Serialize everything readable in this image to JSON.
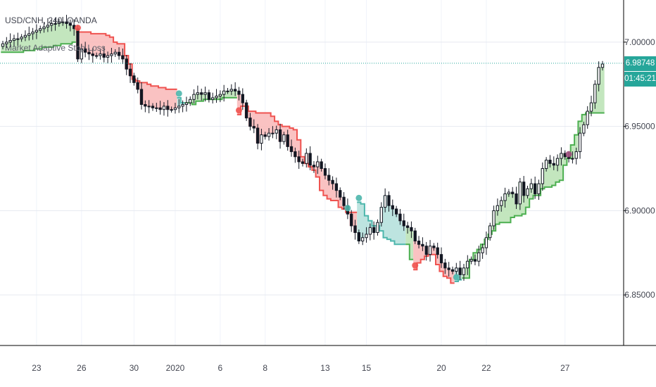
{
  "header": {
    "title": "USD/CNH, 240, OANDA",
    "indicator": "Market Adaptive Stop Loss"
  },
  "price_axis": {
    "last_price": "6.98748",
    "countdown": "01:45:21"
  },
  "colors": {
    "up_fill": "#b9e2b3",
    "up_line": "#4caf50",
    "down_fill": "#f9b7b7",
    "down_line": "#ef5350",
    "teal_fill": "#b2dfdb",
    "teal_line": "#4db6ac",
    "current_price": "#26a69a",
    "marker_red": "#ef5350",
    "marker_teal": "#4db6ac",
    "marker_purple": "#9c4d7b"
  },
  "chart_data": {
    "type": "candlestick",
    "symbol": "USD/CNH",
    "timeframe": "240",
    "source": "OANDA",
    "ylim": [
      6.82,
      7.025
    ],
    "y_ticks": [
      "7.00000",
      "6.95000",
      "6.90000",
      "6.85000"
    ],
    "y_tick_values": [
      7.0,
      6.95,
      6.9,
      6.85
    ],
    "x_ticks": [
      "23",
      "26",
      "30",
      "2020",
      "6",
      "8",
      "13",
      "15",
      "20",
      "22",
      "27"
    ],
    "current_price": 6.98748,
    "close": [
      6.999,
      7.0,
      7.001,
      7.002,
      7.002,
      7.003,
      7.004,
      7.005,
      7.006,
      7.007,
      7.008,
      7.009,
      7.01,
      7.011,
      7.011,
      7.012,
      7.012,
      7.011,
      7.01,
      7.008,
      6.99,
      6.996,
      6.994,
      6.993,
      6.992,
      6.992,
      6.993,
      6.991,
      6.992,
      6.993,
      6.994,
      6.992,
      6.99,
      6.984,
      6.98,
      6.976,
      6.972,
      6.963,
      6.962,
      6.962,
      6.961,
      6.961,
      6.96,
      6.962,
      6.96,
      6.96,
      6.961,
      6.962,
      6.963,
      6.964,
      6.966,
      6.969,
      6.97,
      6.969,
      6.97,
      6.966,
      6.967,
      6.968,
      6.969,
      6.971,
      6.971,
      6.972,
      6.971,
      6.969,
      6.964,
      6.955,
      6.95,
      6.949,
      6.94,
      6.945,
      6.944,
      6.946,
      6.946,
      6.948,
      6.941,
      6.945,
      6.938,
      6.935,
      6.932,
      6.929,
      6.928,
      6.934,
      6.927,
      6.926,
      6.929,
      6.925,
      6.921,
      6.918,
      6.916,
      6.912,
      6.908,
      6.903,
      6.898,
      6.891,
      6.887,
      6.882,
      6.884,
      6.886,
      6.89,
      6.887,
      6.893,
      6.902,
      6.909,
      6.903,
      6.901,
      6.898,
      6.894,
      6.891,
      6.89,
      6.888,
      6.882,
      6.88,
      6.879,
      6.874,
      6.879,
      6.878,
      6.874,
      6.869,
      6.866,
      6.865,
      6.864,
      6.866,
      6.862,
      6.866,
      6.87,
      6.871,
      6.87,
      6.875,
      6.878,
      6.884,
      6.891,
      6.9,
      6.903,
      6.906,
      6.91,
      6.911,
      6.91,
      6.904,
      6.917,
      6.909,
      6.913,
      6.916,
      6.91,
      6.916,
      6.925,
      6.93,
      6.928,
      6.927,
      6.931,
      6.934,
      6.932,
      6.931,
      6.931,
      6.935,
      6.946,
      6.951,
      6.959,
      6.964,
      6.975,
      6.985,
      6.987
    ],
    "stop_loss": [
      6.994,
      6.994,
      6.994,
      6.994,
      6.994,
      6.994,
      6.995,
      6.995,
      6.995,
      6.996,
      6.996,
      6.997,
      6.997,
      6.997,
      6.998,
      6.998,
      6.999,
      6.999,
      6.999,
      7.0,
      7.006,
      7.006,
      7.006,
      7.006,
      7.005,
      7.005,
      7.005,
      7.005,
      7.004,
      7.003,
      7.0,
      6.999,
      6.999,
      6.992,
      6.987,
      6.978,
      6.977,
      6.976,
      6.976,
      6.975,
      6.974,
      6.974,
      6.973,
      6.973,
      6.972,
      6.972,
      6.972,
      6.967,
      6.964,
      6.964,
      6.964,
      6.963,
      6.965,
      6.965,
      6.966,
      6.966,
      6.966,
      6.966,
      6.966,
      6.967,
      6.967,
      6.967,
      6.967,
      6.957,
      6.962,
      6.962,
      6.959,
      6.959,
      6.958,
      6.958,
      6.958,
      6.958,
      6.956,
      6.953,
      6.951,
      6.95,
      6.95,
      6.949,
      6.948,
      6.942,
      6.932,
      6.928,
      6.926,
      6.924,
      6.92,
      6.912,
      6.909,
      6.907,
      6.906,
      6.906,
      6.902,
      6.901,
      6.899,
      6.899,
      6.899,
      6.905,
      6.904,
      6.897,
      6.894,
      6.891,
      6.891,
      6.888,
      6.884,
      6.883,
      6.882,
      6.88,
      6.88,
      6.88,
      6.88,
      6.871,
      6.865,
      6.869,
      6.871,
      6.873,
      6.874,
      6.874,
      6.868,
      6.864,
      6.861,
      6.86,
      6.857,
      6.858,
      6.859,
      6.86,
      6.86,
      6.871,
      6.875,
      6.877,
      6.88,
      6.883,
      6.886,
      6.888,
      6.892,
      6.893,
      6.893,
      6.893,
      6.896,
      6.897,
      6.897,
      6.898,
      6.902,
      6.907,
      6.909,
      6.909,
      6.913,
      6.914,
      6.914,
      6.915,
      6.917,
      6.918,
      6.927,
      6.931,
      6.939,
      6.945,
      6.953,
      6.957,
      6.958,
      6.958,
      6.958,
      6.958,
      6.958
    ],
    "stop_state": [
      "up",
      "up",
      "up",
      "up",
      "up",
      "up",
      "up",
      "up",
      "up",
      "up",
      "up",
      "up",
      "up",
      "up",
      "up",
      "up",
      "up",
      "up",
      "up",
      "up",
      "down",
      "down",
      "down",
      "down",
      "down",
      "down",
      "down",
      "down",
      "down",
      "down",
      "down",
      "down",
      "down",
      "down",
      "down",
      "down",
      "down",
      "down",
      "down",
      "down",
      "down",
      "down",
      "down",
      "down",
      "down",
      "down",
      "down",
      "teal",
      "teal",
      "up",
      "up",
      "up",
      "up",
      "up",
      "up",
      "up",
      "up",
      "up",
      "up",
      "up",
      "up",
      "up",
      "up",
      "down",
      "down",
      "down",
      "down",
      "down",
      "down",
      "down",
      "down",
      "down",
      "down",
      "down",
      "down",
      "down",
      "down",
      "down",
      "down",
      "down",
      "down",
      "down",
      "down",
      "down",
      "down",
      "down",
      "down",
      "down",
      "down",
      "down",
      "down",
      "down",
      "down",
      "down",
      "down",
      "teal",
      "teal",
      "teal",
      "teal",
      "teal",
      "teal",
      "teal",
      "teal",
      "teal",
      "teal",
      "teal",
      "teal",
      "teal",
      "up",
      "up",
      "down",
      "down",
      "down",
      "down",
      "down",
      "down",
      "down",
      "down",
      "down",
      "down",
      "down",
      "teal",
      "teal",
      "up",
      "up",
      "up",
      "up",
      "up",
      "up",
      "up",
      "up",
      "up",
      "up",
      "up",
      "up",
      "up",
      "up",
      "up",
      "up",
      "up",
      "up",
      "up",
      "up",
      "up",
      "up",
      "up",
      "up",
      "up",
      "up",
      "up",
      "up",
      "up",
      "up",
      "up",
      "up",
      "up",
      "up",
      "up",
      "up",
      "up",
      "up"
    ],
    "signals": [
      {
        "index": 20,
        "type": "flip_down",
        "color": "red"
      },
      {
        "index": 47,
        "type": "flip_up",
        "color": "teal"
      },
      {
        "index": 63,
        "type": "flip_down",
        "color": "red"
      },
      {
        "index": 92,
        "type": "flip_up",
        "color": "teal"
      },
      {
        "index": 95,
        "type": "flip_up",
        "color": "teal"
      },
      {
        "index": 110,
        "type": "flip_down",
        "color": "red"
      },
      {
        "index": 121,
        "type": "flip_up",
        "color": "teal"
      },
      {
        "index": 151,
        "type": "flip_down",
        "color": "purple"
      }
    ]
  }
}
